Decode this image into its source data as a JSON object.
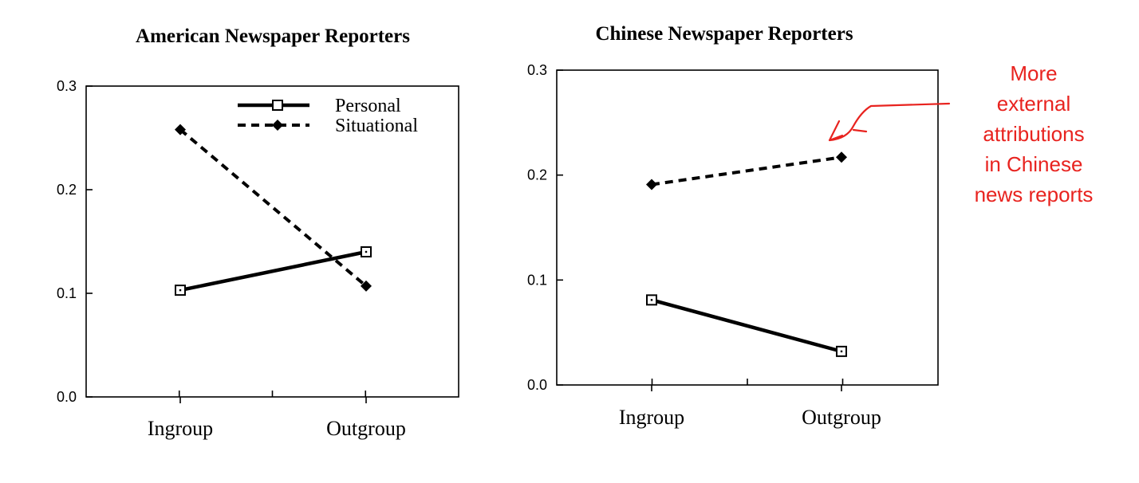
{
  "chart_data": [
    {
      "type": "line",
      "title": "American Newspaper Reporters",
      "categories": [
        "Ingroup",
        "Outgroup"
      ],
      "ylim": [
        0.0,
        0.3
      ],
      "yticks": [
        "0.3",
        "0.2",
        "0.1",
        "0.0"
      ],
      "series": [
        {
          "name": "Personal",
          "values": [
            0.103,
            0.14
          ],
          "style": "solid",
          "marker": "square"
        },
        {
          "name": "Situational",
          "values": [
            0.258,
            0.107
          ],
          "style": "dashed",
          "marker": "diamond"
        }
      ],
      "legend": {
        "position": "top-right",
        "entries": [
          "Personal",
          "Situational"
        ]
      },
      "grid": false
    },
    {
      "type": "line",
      "title": "Chinese Newspaper Reporters",
      "categories": [
        "Ingroup",
        "Outgroup"
      ],
      "ylim": [
        0.0,
        0.3
      ],
      "yticks": [
        "0.3",
        "0.2",
        "0.1",
        "0.0"
      ],
      "series": [
        {
          "name": "Personal",
          "values": [
            0.081,
            0.032
          ],
          "style": "solid",
          "marker": "square"
        },
        {
          "name": "Situational",
          "values": [
            0.191,
            0.217
          ],
          "style": "dashed",
          "marker": "diamond"
        }
      ],
      "grid": false
    }
  ],
  "annotation": {
    "lines": [
      "More",
      "external",
      "attributions",
      "in Chinese",
      "news reports"
    ],
    "color": "#e8231f"
  }
}
